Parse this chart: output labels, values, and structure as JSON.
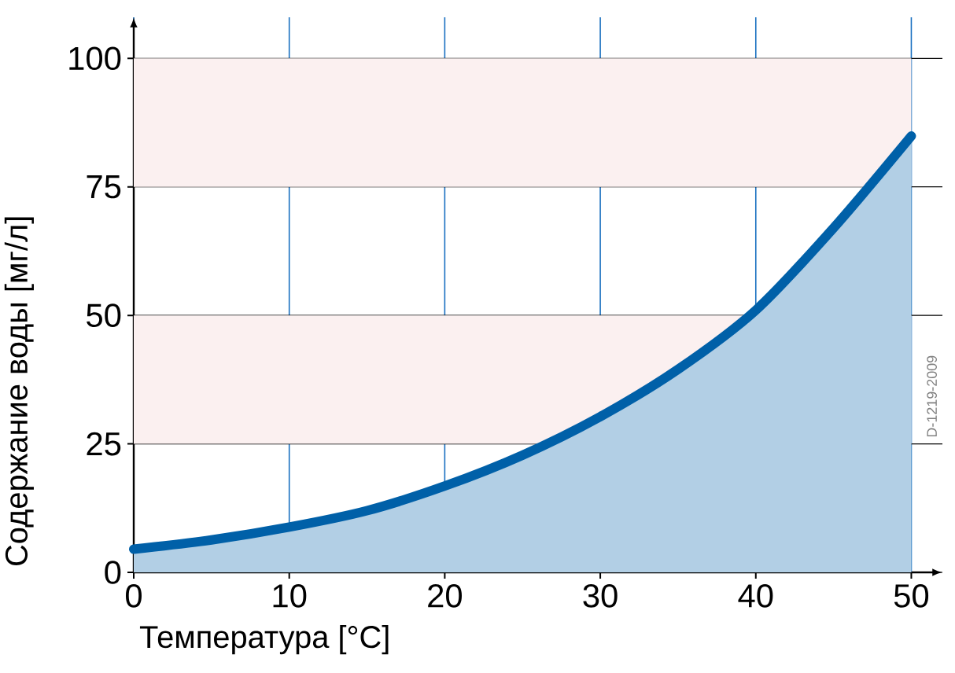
{
  "chart_data": {
    "type": "area",
    "xlabel": "Температура [°C]",
    "ylabel": "Содержание воды [мг/л]",
    "x": [
      0,
      5,
      10,
      15,
      20,
      25,
      30,
      35,
      40,
      45,
      50
    ],
    "series": [
      {
        "color": "#0060a8",
        "values": [
          4.5,
          6.3,
          8.8,
          12,
          16.8,
          22.8,
          30.3,
          39.5,
          51,
          67,
          84.9
        ]
      }
    ],
    "xlim": [
      0,
      52
    ],
    "ylim": [
      0,
      108
    ],
    "xticks": [
      0,
      10,
      20,
      30,
      40,
      50
    ],
    "yticks": [
      0,
      25,
      50,
      75,
      100
    ],
    "bands": [
      {
        "axis": "y",
        "from": 25,
        "to": 50,
        "color": "#fbf0f0"
      },
      {
        "axis": "y",
        "from": 75,
        "to": 100,
        "color": "#fbf0f0"
      }
    ],
    "grid": true,
    "marker": "none",
    "line_style": "solid",
    "annotations": [
      "D-1219-2009"
    ]
  }
}
